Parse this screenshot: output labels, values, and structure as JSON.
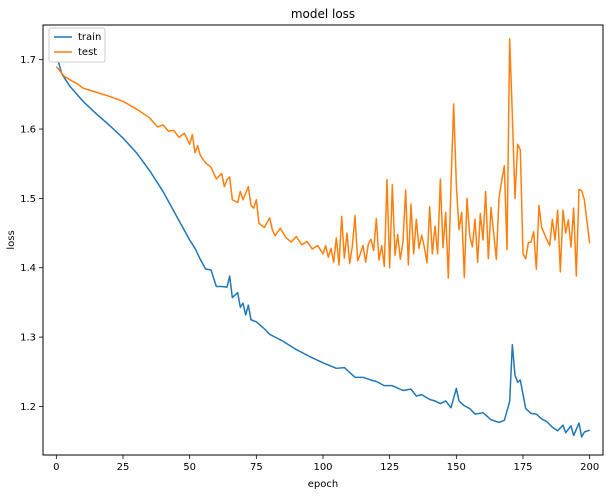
{
  "chart_data": {
    "type": "line",
    "title": "model loss",
    "xlabel": "epoch",
    "ylabel": "loss",
    "xlim": [
      -5,
      205
    ],
    "ylim": [
      1.13,
      1.75
    ],
    "xticks": [
      0,
      25,
      50,
      75,
      100,
      125,
      150,
      175,
      200
    ],
    "yticks": [
      1.2,
      1.3,
      1.4,
      1.5,
      1.6,
      1.7
    ],
    "grid": false,
    "legend_position": "upper left",
    "series": [
      {
        "name": "train",
        "color": "#1f77b4",
        "points": [
          [
            0,
            1.708
          ],
          [
            2,
            1.68
          ],
          [
            5,
            1.662
          ],
          [
            10,
            1.64
          ],
          [
            15,
            1.622
          ],
          [
            20,
            1.605
          ],
          [
            25,
            1.587
          ],
          [
            30,
            1.566
          ],
          [
            35,
            1.54
          ],
          [
            40,
            1.51
          ],
          [
            45,
            1.475
          ],
          [
            50,
            1.44
          ],
          [
            52,
            1.428
          ],
          [
            54,
            1.412
          ],
          [
            56,
            1.398
          ],
          [
            58,
            1.397
          ],
          [
            60,
            1.373
          ],
          [
            62,
            1.373
          ],
          [
            64,
            1.372
          ],
          [
            65,
            1.388
          ],
          [
            66,
            1.357
          ],
          [
            68,
            1.364
          ],
          [
            69,
            1.343
          ],
          [
            70,
            1.349
          ],
          [
            71,
            1.332
          ],
          [
            72,
            1.346
          ],
          [
            73,
            1.325
          ],
          [
            75,
            1.322
          ],
          [
            78,
            1.312
          ],
          [
            80,
            1.304
          ],
          [
            85,
            1.294
          ],
          [
            90,
            1.282
          ],
          [
            95,
            1.272
          ],
          [
            100,
            1.263
          ],
          [
            105,
            1.255
          ],
          [
            108,
            1.256
          ],
          [
            110,
            1.249
          ],
          [
            112,
            1.242
          ],
          [
            115,
            1.242
          ],
          [
            118,
            1.238
          ],
          [
            120,
            1.236
          ],
          [
            123,
            1.23
          ],
          [
            126,
            1.23
          ],
          [
            130,
            1.223
          ],
          [
            133,
            1.225
          ],
          [
            135,
            1.215
          ],
          [
            137,
            1.217
          ],
          [
            140,
            1.21
          ],
          [
            142,
            1.208
          ],
          [
            144,
            1.204
          ],
          [
            146,
            1.208
          ],
          [
            148,
            1.198
          ],
          [
            150,
            1.226
          ],
          [
            151,
            1.208
          ],
          [
            153,
            1.201
          ],
          [
            155,
            1.197
          ],
          [
            157,
            1.189
          ],
          [
            160,
            1.191
          ],
          [
            163,
            1.181
          ],
          [
            166,
            1.177
          ],
          [
            168,
            1.18
          ],
          [
            170,
            1.207
          ],
          [
            171,
            1.289
          ],
          [
            172,
            1.245
          ],
          [
            173,
            1.235
          ],
          [
            174,
            1.238
          ],
          [
            176,
            1.197
          ],
          [
            178,
            1.19
          ],
          [
            180,
            1.189
          ],
          [
            182,
            1.182
          ],
          [
            184,
            1.178
          ],
          [
            186,
            1.17
          ],
          [
            188,
            1.165
          ],
          [
            190,
            1.173
          ],
          [
            191,
            1.162
          ],
          [
            193,
            1.172
          ],
          [
            194,
            1.158
          ],
          [
            196,
            1.176
          ],
          [
            197,
            1.156
          ],
          [
            198,
            1.163
          ],
          [
            200,
            1.166
          ]
        ]
      },
      {
        "name": "test",
        "color": "#ff7f0e",
        "points": [
          [
            0,
            1.69
          ],
          [
            3,
            1.676
          ],
          [
            6,
            1.669
          ],
          [
            8,
            1.665
          ],
          [
            10,
            1.659
          ],
          [
            15,
            1.653
          ],
          [
            20,
            1.647
          ],
          [
            25,
            1.64
          ],
          [
            30,
            1.629
          ],
          [
            35,
            1.616
          ],
          [
            38,
            1.603
          ],
          [
            40,
            1.606
          ],
          [
            42,
            1.597
          ],
          [
            44,
            1.598
          ],
          [
            46,
            1.588
          ],
          [
            48,
            1.594
          ],
          [
            50,
            1.578
          ],
          [
            51,
            1.592
          ],
          [
            52,
            1.566
          ],
          [
            53,
            1.576
          ],
          [
            54,
            1.562
          ],
          [
            56,
            1.551
          ],
          [
            58,
            1.545
          ],
          [
            60,
            1.528
          ],
          [
            62,
            1.536
          ],
          [
            63,
            1.517
          ],
          [
            64,
            1.527
          ],
          [
            65,
            1.531
          ],
          [
            66,
            1.498
          ],
          [
            68,
            1.494
          ],
          [
            69,
            1.51
          ],
          [
            70,
            1.498
          ],
          [
            72,
            1.517
          ],
          [
            73,
            1.49
          ],
          [
            74,
            1.486
          ],
          [
            75,
            1.498
          ],
          [
            76,
            1.464
          ],
          [
            78,
            1.458
          ],
          [
            80,
            1.472
          ],
          [
            81,
            1.455
          ],
          [
            82,
            1.446
          ],
          [
            84,
            1.457
          ],
          [
            86,
            1.444
          ],
          [
            88,
            1.437
          ],
          [
            90,
            1.445
          ],
          [
            92,
            1.433
          ],
          [
            94,
            1.438
          ],
          [
            96,
            1.427
          ],
          [
            98,
            1.432
          ],
          [
            100,
            1.42
          ],
          [
            101,
            1.432
          ],
          [
            102,
            1.415
          ],
          [
            103,
            1.428
          ],
          [
            104,
            1.408
          ],
          [
            105,
            1.443
          ],
          [
            106,
            1.404
          ],
          [
            107,
            1.474
          ],
          [
            108,
            1.414
          ],
          [
            109,
            1.45
          ],
          [
            110,
            1.406
          ],
          [
            111,
            1.431
          ],
          [
            112,
            1.475
          ],
          [
            113,
            1.41
          ],
          [
            114,
            1.42
          ],
          [
            115,
            1.432
          ],
          [
            116,
            1.408
          ],
          [
            117,
            1.434
          ],
          [
            118,
            1.441
          ],
          [
            119,
            1.425
          ],
          [
            120,
            1.471
          ],
          [
            121,
            1.411
          ],
          [
            122,
            1.432
          ],
          [
            123,
            1.402
          ],
          [
            124,
            1.527
          ],
          [
            125,
            1.4
          ],
          [
            126,
            1.52
          ],
          [
            127,
            1.418
          ],
          [
            128,
            1.448
          ],
          [
            129,
            1.412
          ],
          [
            130,
            1.438
          ],
          [
            131,
            1.512
          ],
          [
            132,
            1.404
          ],
          [
            133,
            1.492
          ],
          [
            134,
            1.42
          ],
          [
            135,
            1.47
          ],
          [
            136,
            1.428
          ],
          [
            137,
            1.447
          ],
          [
            138,
            1.43
          ],
          [
            139,
            1.407
          ],
          [
            140,
            1.488
          ],
          [
            141,
            1.42
          ],
          [
            142,
            1.46
          ],
          [
            143,
            1.42
          ],
          [
            144,
            1.528
          ],
          [
            145,
            1.429
          ],
          [
            146,
            1.48
          ],
          [
            147,
            1.385
          ],
          [
            148,
            1.52
          ],
          [
            149,
            1.636
          ],
          [
            150,
            1.52
          ],
          [
            151,
            1.455
          ],
          [
            152,
            1.48
          ],
          [
            153,
            1.386
          ],
          [
            154,
            1.5
          ],
          [
            155,
            1.447
          ],
          [
            156,
            1.43
          ],
          [
            157,
            1.47
          ],
          [
            158,
            1.408
          ],
          [
            159,
            1.478
          ],
          [
            160,
            1.44
          ],
          [
            161,
            1.51
          ],
          [
            162,
            1.413
          ],
          [
            163,
            1.487
          ],
          [
            164,
            1.45
          ],
          [
            165,
            1.412
          ],
          [
            166,
            1.5
          ],
          [
            167,
            1.525
          ],
          [
            168,
            1.547
          ],
          [
            169,
            1.426
          ],
          [
            170,
            1.73
          ],
          [
            171,
            1.62
          ],
          [
            172,
            1.5
          ],
          [
            173,
            1.578
          ],
          [
            174,
            1.57
          ],
          [
            175,
            1.42
          ],
          [
            176,
            1.413
          ],
          [
            177,
            1.436
          ],
          [
            178,
            1.437
          ],
          [
            179,
            1.452
          ],
          [
            180,
            1.398
          ],
          [
            181,
            1.49
          ],
          [
            182,
            1.458
          ],
          [
            184,
            1.44
          ],
          [
            185,
            1.432
          ],
          [
            186,
            1.47
          ],
          [
            187,
            1.44
          ],
          [
            188,
            1.483
          ],
          [
            189,
            1.394
          ],
          [
            190,
            1.483
          ],
          [
            191,
            1.45
          ],
          [
            192,
            1.469
          ],
          [
            193,
            1.43
          ],
          [
            194,
            1.486
          ],
          [
            195,
            1.388
          ],
          [
            196,
            1.513
          ],
          [
            197,
            1.511
          ],
          [
            198,
            1.498
          ],
          [
            200,
            1.435
          ]
        ]
      }
    ]
  }
}
